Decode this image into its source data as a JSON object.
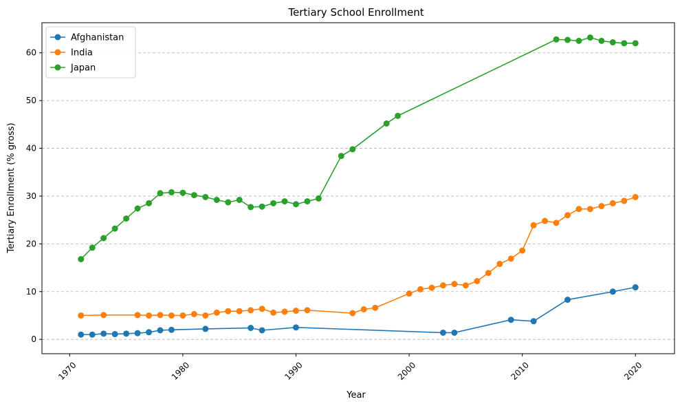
{
  "chart_data": {
    "type": "line",
    "title": "Tertiary School Enrollment",
    "xlabel": "Year",
    "ylabel": "Tertiary Enrollment (% gross)",
    "xlim": [
      1967.55,
      2023.45
    ],
    "ylim": [
      -3.0,
      66.3
    ],
    "xticks": [
      1970,
      1980,
      1990,
      2000,
      2010,
      2020
    ],
    "yticks": [
      0,
      10,
      20,
      30,
      40,
      50,
      60
    ],
    "grid": "horizontal-dashed",
    "legend": "top-left",
    "series": [
      {
        "name": "Afghanistan",
        "color": "#1f77b4",
        "points": [
          [
            1971,
            1.0
          ],
          [
            1972,
            1.0
          ],
          [
            1973,
            1.2
          ],
          [
            1974,
            1.1
          ],
          [
            1975,
            1.2
          ],
          [
            1976,
            1.3
          ],
          [
            1977,
            1.5
          ],
          [
            1978,
            1.9
          ],
          [
            1979,
            2.0
          ],
          [
            1982,
            2.2
          ],
          [
            1986,
            2.4
          ],
          [
            1987,
            1.9
          ],
          [
            1990,
            2.5
          ],
          [
            2003,
            1.4
          ],
          [
            2004,
            1.4
          ],
          [
            2009,
            4.1
          ],
          [
            2011,
            3.8
          ],
          [
            2014,
            8.3
          ],
          [
            2018,
            10.0
          ],
          [
            2020,
            10.9
          ]
        ]
      },
      {
        "name": "India",
        "color": "#ff7f0e",
        "points": [
          [
            1971,
            5.0
          ],
          [
            1973,
            5.1
          ],
          [
            1976,
            5.1
          ],
          [
            1977,
            5.0
          ],
          [
            1978,
            5.1
          ],
          [
            1979,
            5.0
          ],
          [
            1980,
            5.0
          ],
          [
            1981,
            5.3
          ],
          [
            1982,
            5.0
          ],
          [
            1983,
            5.6
          ],
          [
            1984,
            5.9
          ],
          [
            1985,
            5.9
          ],
          [
            1986,
            6.1
          ],
          [
            1987,
            6.4
          ],
          [
            1988,
            5.6
          ],
          [
            1989,
            5.8
          ],
          [
            1990,
            6.0
          ],
          [
            1991,
            6.1
          ],
          [
            1995,
            5.5
          ],
          [
            1996,
            6.3
          ],
          [
            1997,
            6.6
          ],
          [
            2000,
            9.6
          ],
          [
            2001,
            10.5
          ],
          [
            2002,
            10.8
          ],
          [
            2003,
            11.3
          ],
          [
            2004,
            11.6
          ],
          [
            2005,
            11.3
          ],
          [
            2006,
            12.2
          ],
          [
            2007,
            13.9
          ],
          [
            2008,
            15.8
          ],
          [
            2009,
            16.9
          ],
          [
            2010,
            18.6
          ],
          [
            2011,
            23.9
          ],
          [
            2012,
            24.8
          ],
          [
            2013,
            24.4
          ],
          [
            2014,
            26.0
          ],
          [
            2015,
            27.3
          ],
          [
            2016,
            27.3
          ],
          [
            2017,
            27.9
          ],
          [
            2018,
            28.5
          ],
          [
            2019,
            29.0
          ],
          [
            2020,
            29.8
          ]
        ]
      },
      {
        "name": "Japan",
        "color": "#2ca02c",
        "points": [
          [
            1971,
            16.8
          ],
          [
            1972,
            19.2
          ],
          [
            1973,
            21.2
          ],
          [
            1974,
            23.2
          ],
          [
            1975,
            25.3
          ],
          [
            1976,
            27.4
          ],
          [
            1977,
            28.5
          ],
          [
            1978,
            30.6
          ],
          [
            1979,
            30.8
          ],
          [
            1980,
            30.7
          ],
          [
            1981,
            30.2
          ],
          [
            1982,
            29.8
          ],
          [
            1983,
            29.2
          ],
          [
            1984,
            28.7
          ],
          [
            1985,
            29.2
          ],
          [
            1986,
            27.7
          ],
          [
            1987,
            27.8
          ],
          [
            1988,
            28.5
          ],
          [
            1989,
            28.9
          ],
          [
            1990,
            28.3
          ],
          [
            1991,
            28.9
          ],
          [
            1992,
            29.5
          ],
          [
            1994,
            38.4
          ],
          [
            1995,
            39.8
          ],
          [
            1998,
            45.2
          ],
          [
            1999,
            46.8
          ],
          [
            2013,
            62.8
          ],
          [
            2014,
            62.7
          ],
          [
            2015,
            62.5
          ],
          [
            2016,
            63.2
          ],
          [
            2017,
            62.5
          ],
          [
            2018,
            62.2
          ],
          [
            2019,
            62.0
          ],
          [
            2020,
            62.0
          ]
        ]
      }
    ]
  }
}
